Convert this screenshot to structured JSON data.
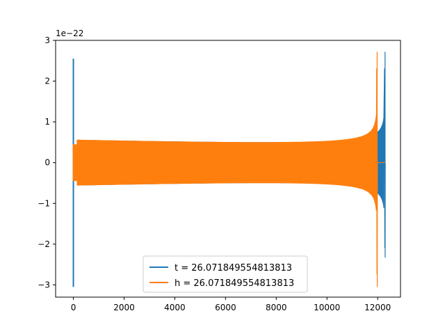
{
  "chart_data": {
    "type": "line",
    "title": "",
    "xlabel": "",
    "ylabel": "",
    "offset_label": "1e−22",
    "scale": 1e-22,
    "xlim": [
      -700,
      12900
    ],
    "ylim": [
      -3.3,
      3.0
    ],
    "xticks": [
      0,
      2000,
      4000,
      6000,
      8000,
      10000,
      12000
    ],
    "xtick_labels": [
      "0",
      "2000",
      "4000",
      "6000",
      "8000",
      "10000",
      "12000"
    ],
    "yticks": [
      -3,
      -2,
      -1,
      0,
      1,
      2,
      3
    ],
    "ytick_labels": [
      "−3",
      "−2",
      "−1",
      "0",
      "1",
      "2",
      "3"
    ],
    "grid": false,
    "legend_position": "lower center",
    "series": [
      {
        "name": "t = 26.071849554813813",
        "color": "#1f77b4",
        "pattern": "inspiral-chirp",
        "start": 0,
        "end": 12290,
        "initial_transient_peak": 2.55,
        "initial_transient_trough": -3.05,
        "base_amplitude": 0.47,
        "merger_peak": 2.72,
        "merger_trough": -2.33,
        "merger_x": 12290
      },
      {
        "name": "h = 26.071849554813813",
        "color": "#ff7f0e",
        "pattern": "inspiral-chirp",
        "start": 0,
        "end": 12290,
        "initial_transient_peak": 0.45,
        "initial_transient_trough": -0.45,
        "base_amplitude": 0.47,
        "merger_peak": 2.72,
        "merger_trough": -3.05,
        "merger_x": 11980
      }
    ]
  }
}
